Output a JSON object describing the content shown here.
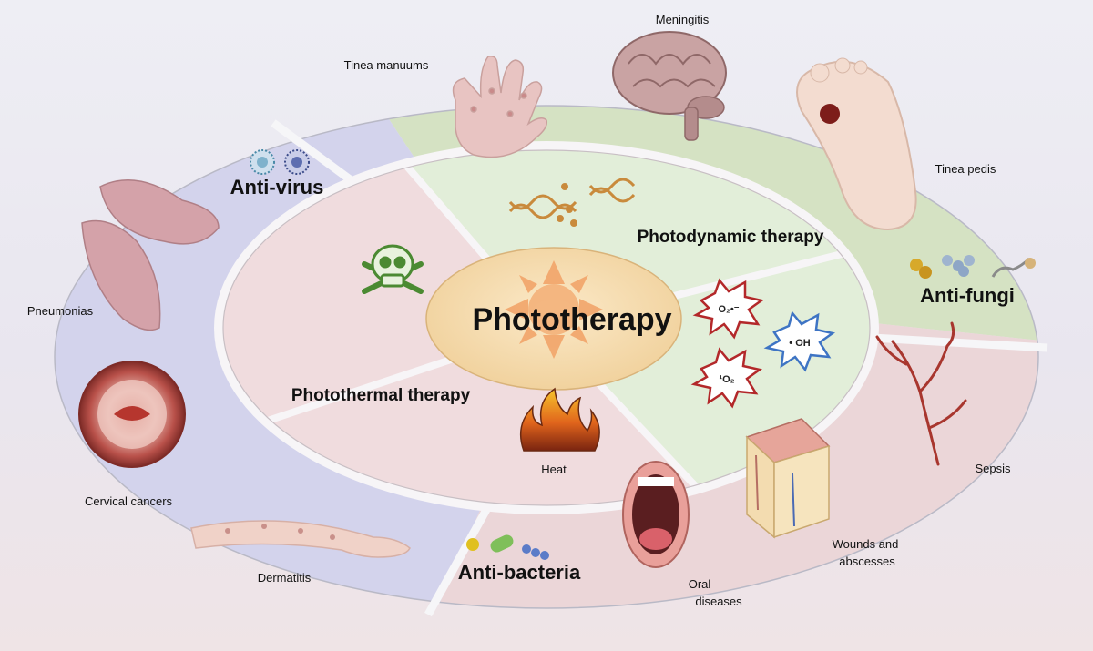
{
  "center": {
    "label": "Phototherapy"
  },
  "therapies": {
    "photodynamic": "Photodynamic therapy",
    "photothermal": "Photothermal therapy",
    "heat": "Heat"
  },
  "reactive_species": {
    "superoxide": "O₂•⁻",
    "hydroxyl": "• OH",
    "singlet_oxygen": "¹O₂"
  },
  "categories": {
    "anti_virus": "Anti-virus",
    "anti_fungi": "Anti-fungi",
    "anti_bacteria": "Anti-bacteria"
  },
  "diseases": {
    "meningitis": "Meningitis",
    "tinea_manuums": "Tinea manuums",
    "tinea_pedis": "Tinea pedis",
    "pneumonias": "Pneumonias",
    "cervical_cancers": "Cervical cancers",
    "dermatitis": "Dermatitis",
    "sepsis": "Sepsis",
    "wounds_line1": "Wounds and",
    "wounds_line2": "abscesses",
    "oral_line1": "Oral",
    "oral_line2": "diseases"
  },
  "colors": {
    "green_ring": "#d6e3c4",
    "blue_ring": "#d4d4ec",
    "pink_ring": "#ecd8da",
    "inner_green": "#e3eedb",
    "inner_pink": "#efd9dc",
    "center_fill": "#f4dcae",
    "sun": "#f0a86a"
  }
}
